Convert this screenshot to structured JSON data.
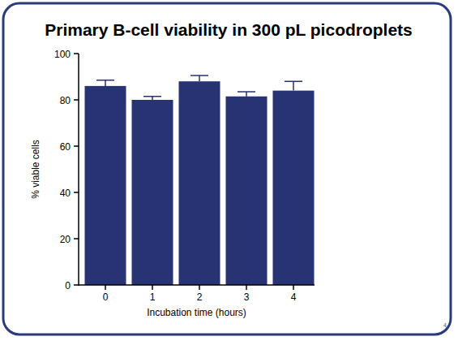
{
  "chart_data": {
    "type": "bar",
    "title": "Primary B-cell viability in 300 pL picodroplets",
    "x_label": "Incubation time (hours)",
    "y_label": "% viable cells",
    "categories": [
      "0",
      "1",
      "2",
      "3",
      "4"
    ],
    "values": [
      86,
      80,
      88,
      81.5,
      84
    ],
    "errors": [
      2.5,
      1.5,
      2.5,
      2,
      4
    ],
    "color": "#283374",
    "ylim": [
      0,
      100
    ],
    "yticks": [
      0,
      20,
      40,
      60,
      80,
      100
    ],
    "grid": false,
    "annotations": [
      "4"
    ]
  }
}
